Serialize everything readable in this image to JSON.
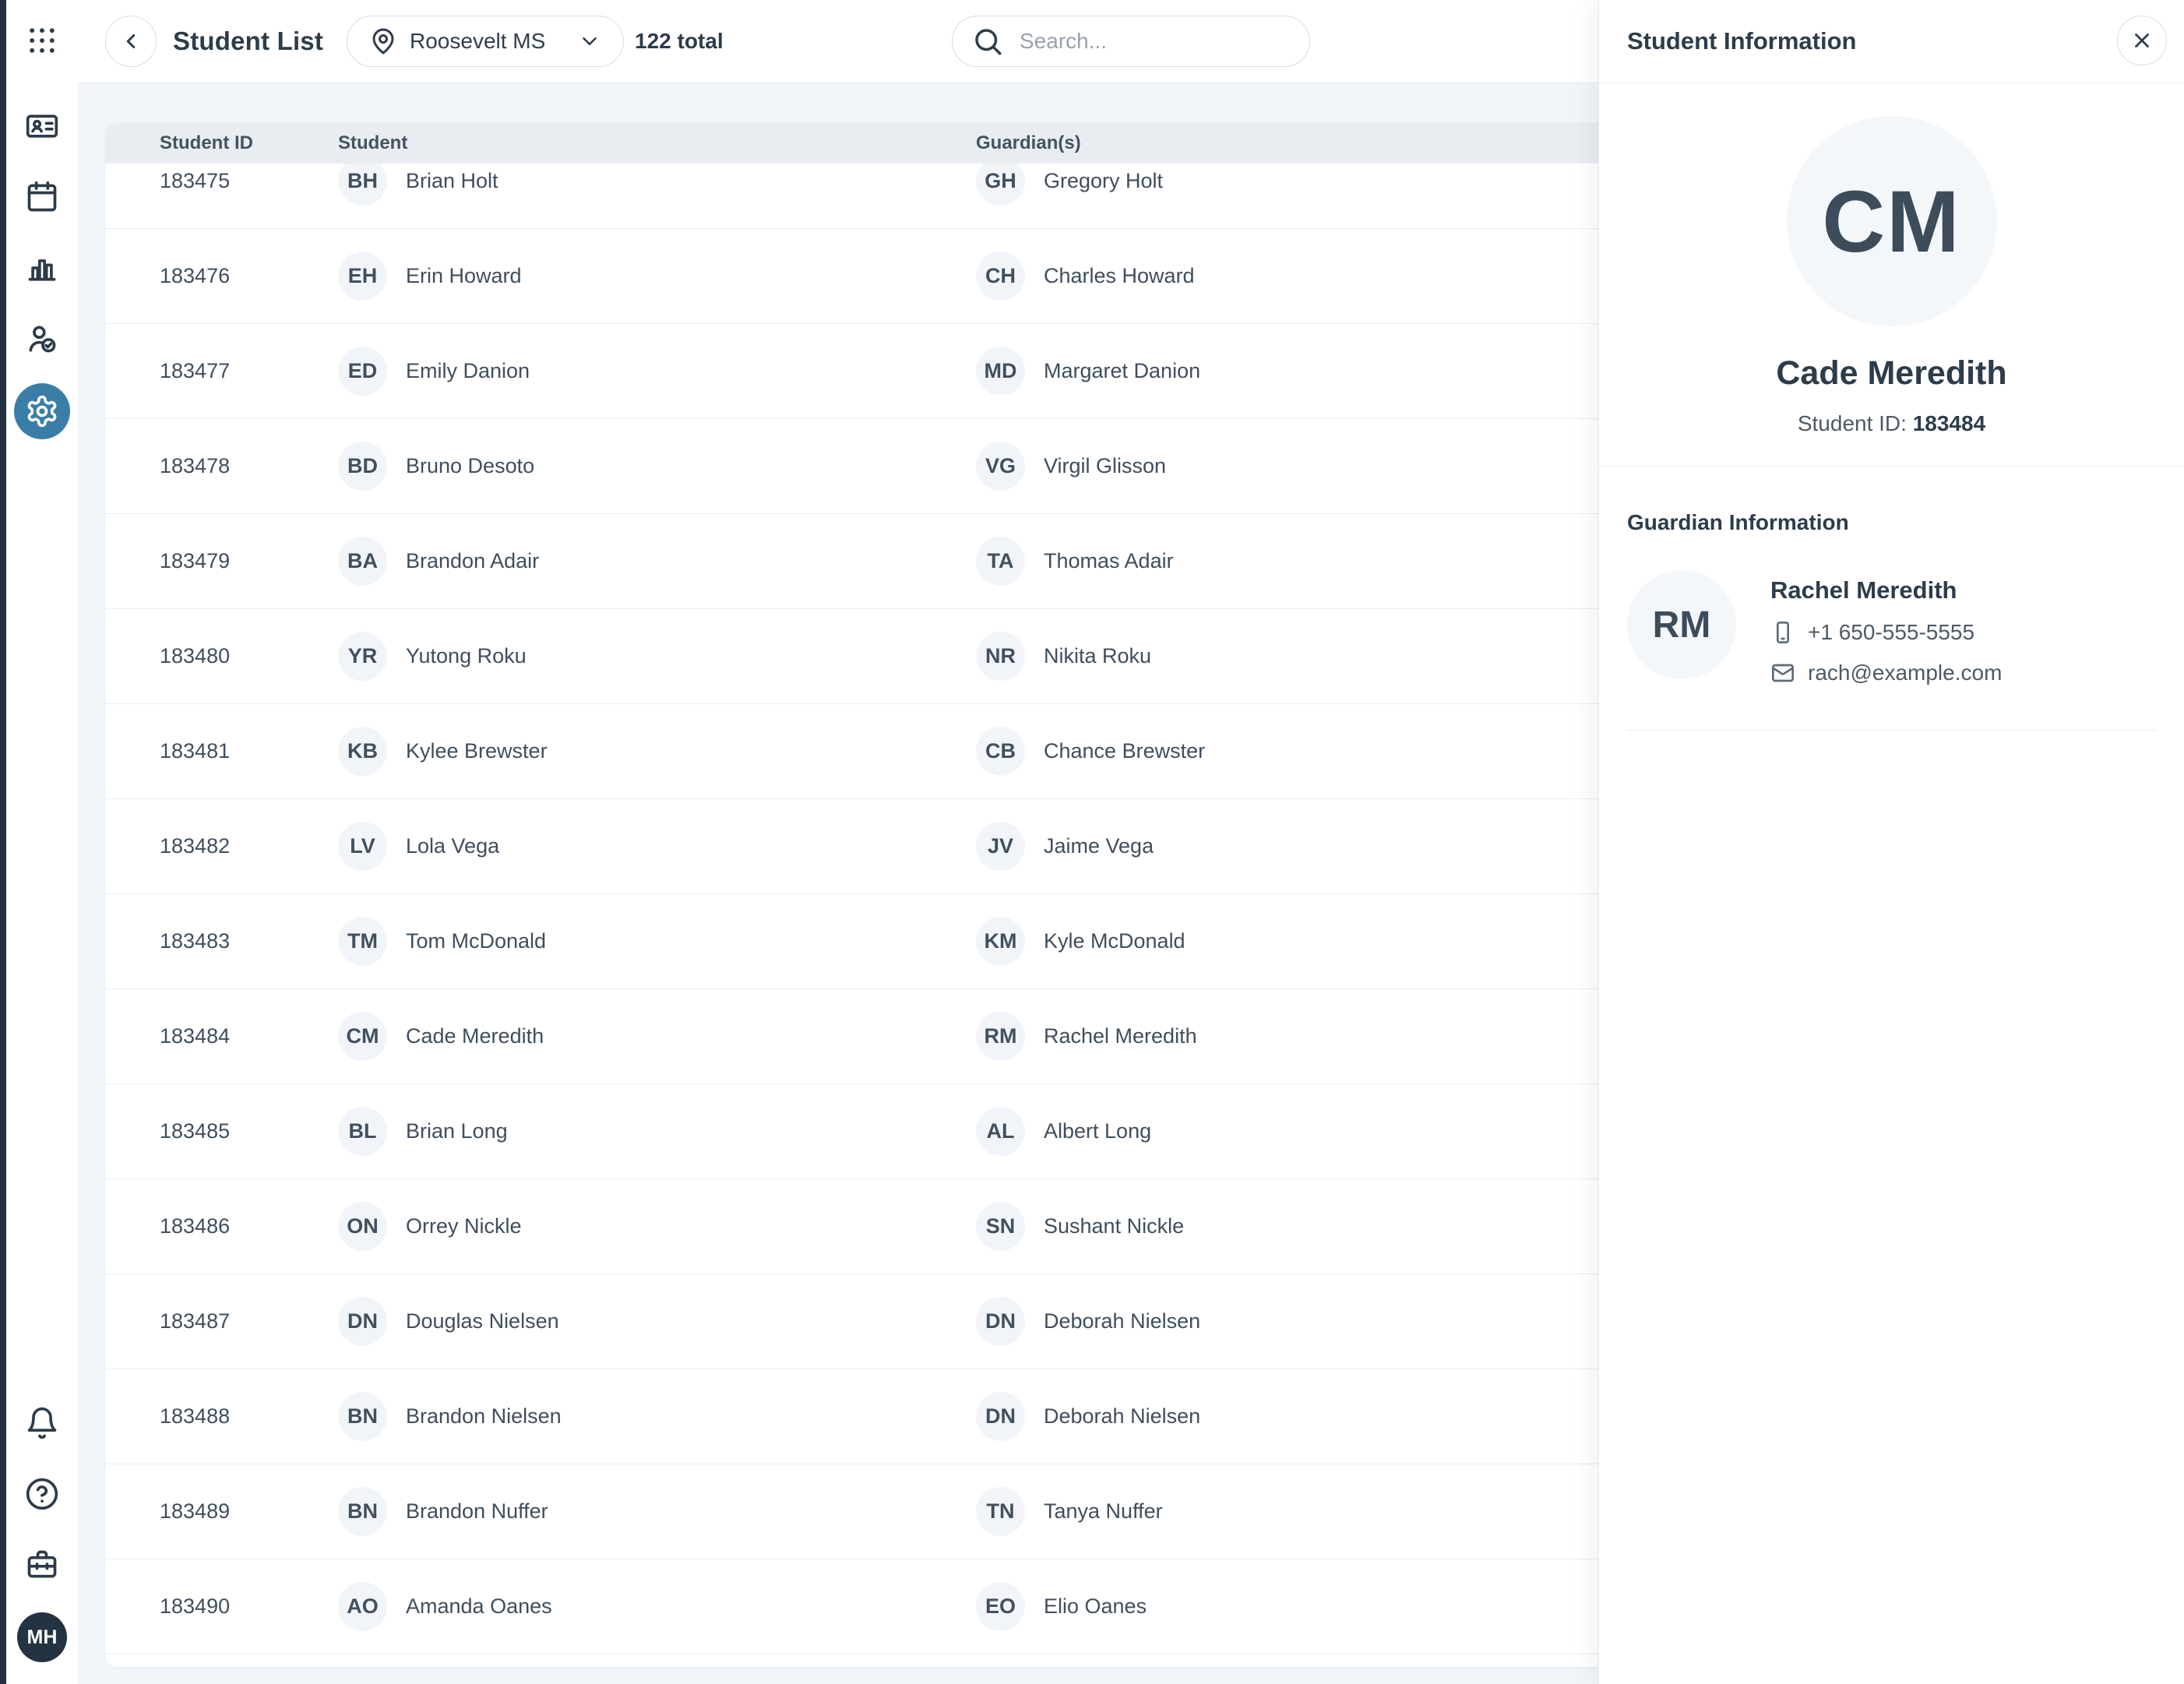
{
  "colors": {
    "accent_blue": "#3a7ea8",
    "ink": "#2d3c4b",
    "sidebar_dark": "#233040",
    "table_header_bg": "#e9edf2",
    "avatar_bg": "#f1f5f9",
    "page_bg": "#f1f5f9"
  },
  "sidebar": {
    "top_icons": [
      "app-grid-icon",
      "id-card-icon",
      "calendar-icon",
      "bar-chart-icon",
      "user-check-icon",
      "settings-gear-icon-active"
    ],
    "bottom_icons": [
      "bell-icon",
      "help-icon",
      "briefcase-icon"
    ],
    "user_initials": "MH"
  },
  "header": {
    "title": "Student List",
    "school_selector_value": "Roosevelt MS",
    "total_label": "122 total",
    "search_placeholder": "Search..."
  },
  "table": {
    "columns": [
      "Student ID",
      "Student",
      "Guardian(s)"
    ],
    "rows": [
      {
        "id": "183475",
        "student_initials": "BH",
        "student": "Brian Holt",
        "guardian_initials": "GH",
        "guardian": "Gregory Holt"
      },
      {
        "id": "183476",
        "student_initials": "EH",
        "student": "Erin Howard",
        "guardian_initials": "CH",
        "guardian": "Charles Howard"
      },
      {
        "id": "183477",
        "student_initials": "ED",
        "student": "Emily Danion",
        "guardian_initials": "MD",
        "guardian": "Margaret Danion"
      },
      {
        "id": "183478",
        "student_initials": "BD",
        "student": "Bruno Desoto",
        "guardian_initials": "VG",
        "guardian": "Virgil Glisson"
      },
      {
        "id": "183479",
        "student_initials": "BA",
        "student": "Brandon Adair",
        "guardian_initials": "TA",
        "guardian": "Thomas Adair"
      },
      {
        "id": "183480",
        "student_initials": "YR",
        "student": "Yutong Roku",
        "guardian_initials": "NR",
        "guardian": "Nikita Roku"
      },
      {
        "id": "183481",
        "student_initials": "KB",
        "student": "Kylee Brewster",
        "guardian_initials": "CB",
        "guardian": "Chance Brewster"
      },
      {
        "id": "183482",
        "student_initials": "LV",
        "student": "Lola Vega",
        "guardian_initials": "JV",
        "guardian": "Jaime Vega"
      },
      {
        "id": "183483",
        "student_initials": "TM",
        "student": "Tom McDonald",
        "guardian_initials": "KM",
        "guardian": "Kyle McDonald"
      },
      {
        "id": "183484",
        "student_initials": "CM",
        "student": "Cade Meredith",
        "guardian_initials": "RM",
        "guardian": "Rachel Meredith"
      },
      {
        "id": "183485",
        "student_initials": "BL",
        "student": "Brian Long",
        "guardian_initials": "AL",
        "guardian": "Albert Long"
      },
      {
        "id": "183486",
        "student_initials": "ON",
        "student": "Orrey Nickle",
        "guardian_initials": "SN",
        "guardian": "Sushant Nickle"
      },
      {
        "id": "183487",
        "student_initials": "DN",
        "student": "Douglas Nielsen",
        "guardian_initials": "DN",
        "guardian": "Deborah Nielsen"
      },
      {
        "id": "183488",
        "student_initials": "BN",
        "student": "Brandon Nielsen",
        "guardian_initials": "DN",
        "guardian": "Deborah Nielsen"
      },
      {
        "id": "183489",
        "student_initials": "BN",
        "student": "Brandon Nuffer",
        "guardian_initials": "TN",
        "guardian": "Tanya Nuffer"
      },
      {
        "id": "183490",
        "student_initials": "AO",
        "student": "Amanda Oanes",
        "guardian_initials": "EO",
        "guardian": "Elio Oanes"
      }
    ]
  },
  "panel": {
    "title": "Student Information",
    "student": {
      "initials": "CM",
      "name": "Cade Meredith",
      "id_label": "Student ID: ",
      "id": "183484"
    },
    "guardian_section": {
      "heading": "Guardian Information",
      "guardian": {
        "initials": "RM",
        "name": "Rachel Meredith",
        "phone": "+1 650-555-5555",
        "email": "rach@example.com"
      }
    }
  }
}
